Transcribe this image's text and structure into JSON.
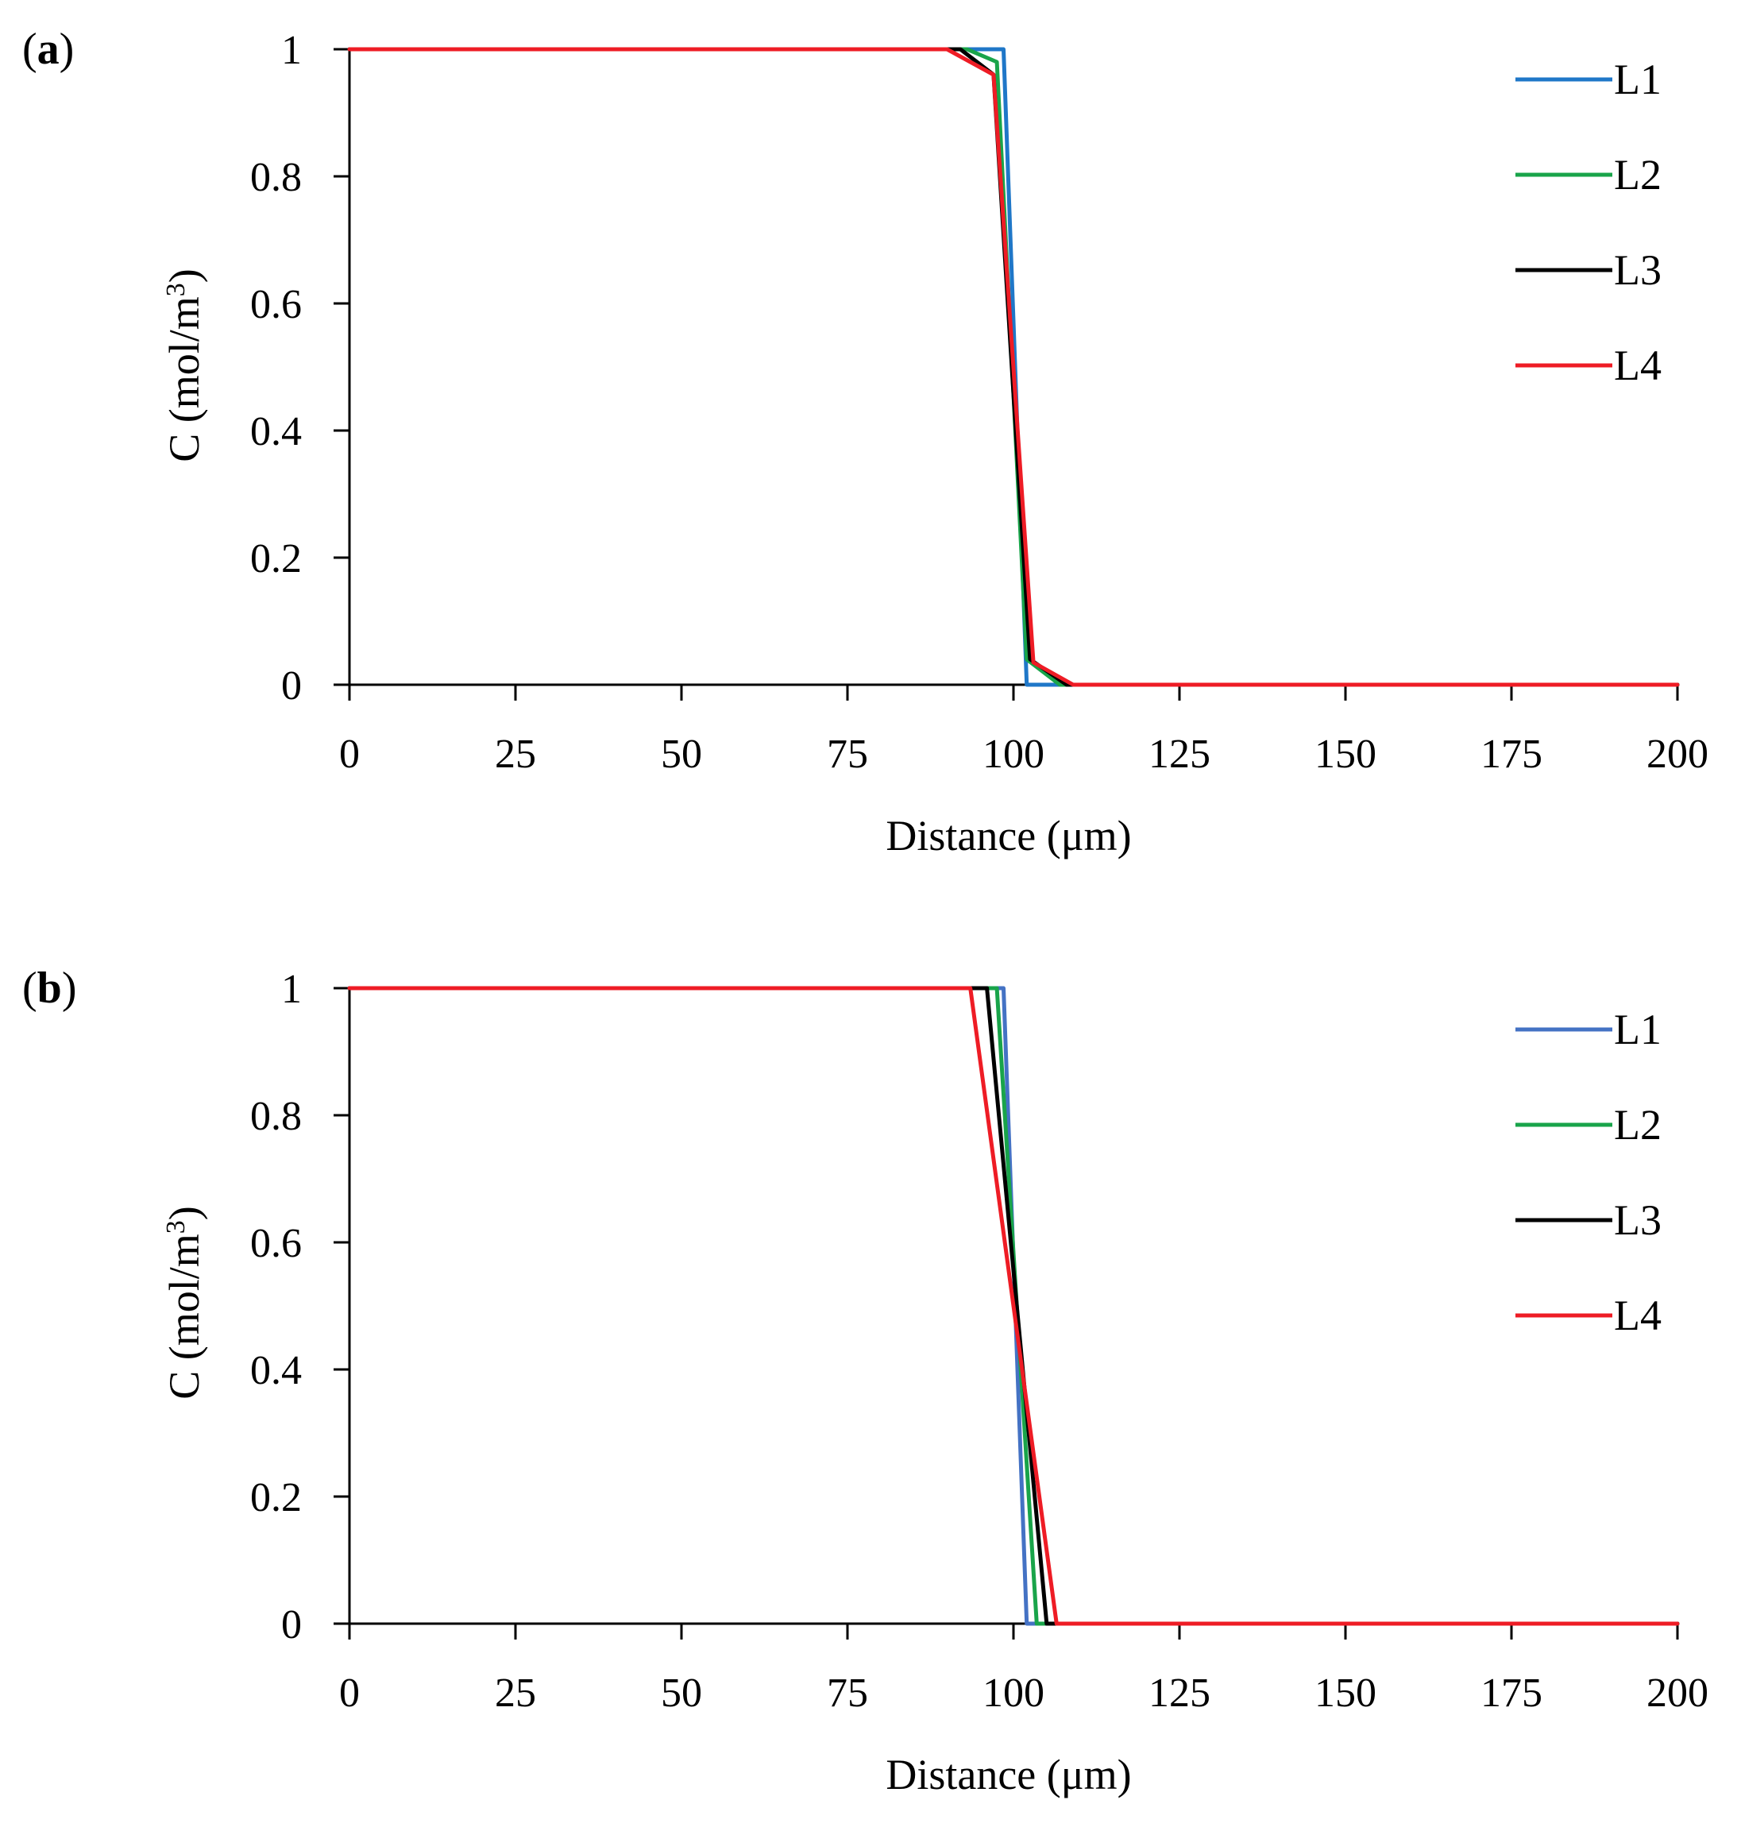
{
  "chart_data": [
    {
      "panel_label": "a",
      "type": "line",
      "xlabel": "Distance (μm)",
      "ylabel": "C (mol/m",
      "ylabel_superscript": "3",
      "ylabel_suffix": ")",
      "xlim": [
        0,
        200
      ],
      "ylim": [
        0,
        1
      ],
      "xticks": [
        "0",
        "25",
        "50",
        "75",
        "100",
        "125",
        "150",
        "175",
        "200"
      ],
      "yticks": [
        "0",
        "0.2",
        "0.4",
        "0.6",
        "0.8",
        "1"
      ],
      "xtick_values": [
        0,
        25,
        50,
        75,
        100,
        125,
        150,
        175,
        200
      ],
      "ytick_values": [
        0,
        0.2,
        0.4,
        0.6,
        0.8,
        1
      ],
      "grid": false,
      "legend": "top-right",
      "series": [
        {
          "name": "L1",
          "color": "#1f77c8",
          "points": [
            [
              0,
              1
            ],
            [
              98,
              1
            ],
            [
              98.5,
              1
            ],
            [
              102,
              0
            ],
            [
              200,
              0
            ]
          ]
        },
        {
          "name": "L2",
          "color": "#19a44a",
          "points": [
            [
              0,
              1
            ],
            [
              93,
              1
            ],
            [
              97.5,
              0.98
            ],
            [
              102,
              0.04
            ],
            [
              107,
              0
            ],
            [
              200,
              0
            ]
          ]
        },
        {
          "name": "L3",
          "color": "#000000",
          "points": [
            [
              0,
              1
            ],
            [
              92,
              1
            ],
            [
              97,
              0.96
            ],
            [
              102.5,
              0.04
            ],
            [
              108,
              0
            ],
            [
              200,
              0
            ]
          ]
        },
        {
          "name": "L4",
          "color": "#ee1c25",
          "points": [
            [
              0,
              1
            ],
            [
              90,
              1
            ],
            [
              97,
              0.96
            ],
            [
              103,
              0.035
            ],
            [
              109,
              0
            ],
            [
              200,
              0
            ]
          ]
        }
      ]
    },
    {
      "panel_label": "b",
      "type": "line",
      "xlabel": "Distance (μm)",
      "ylabel": "C (mol/m",
      "ylabel_superscript": "3",
      "ylabel_suffix": ")",
      "xlim": [
        0,
        200
      ],
      "ylim": [
        0,
        1
      ],
      "xticks": [
        "0",
        "25",
        "50",
        "75",
        "100",
        "125",
        "150",
        "175",
        "200"
      ],
      "yticks": [
        "0",
        "0.2",
        "0.4",
        "0.6",
        "0.8",
        "1"
      ],
      "xtick_values": [
        0,
        25,
        50,
        75,
        100,
        125,
        150,
        175,
        200
      ],
      "ytick_values": [
        0,
        0.2,
        0.4,
        0.6,
        0.8,
        1
      ],
      "grid": false,
      "legend": "top-right",
      "series": [
        {
          "name": "L1",
          "color": "#4472c4",
          "points": [
            [
              0,
              1
            ],
            [
              98.5,
              1
            ],
            [
              102,
              0
            ],
            [
              200,
              0
            ]
          ]
        },
        {
          "name": "L2",
          "color": "#19a44a",
          "points": [
            [
              0,
              1
            ],
            [
              97.5,
              1
            ],
            [
              103.5,
              0
            ],
            [
              200,
              0
            ]
          ]
        },
        {
          "name": "L3",
          "color": "#000000",
          "points": [
            [
              0,
              1
            ],
            [
              96,
              1
            ],
            [
              105,
              0
            ],
            [
              200,
              0
            ]
          ]
        },
        {
          "name": "L4",
          "color": "#ee1c25",
          "points": [
            [
              0,
              1
            ],
            [
              93.5,
              1
            ],
            [
              106.5,
              0
            ],
            [
              200,
              0
            ]
          ]
        }
      ]
    }
  ]
}
